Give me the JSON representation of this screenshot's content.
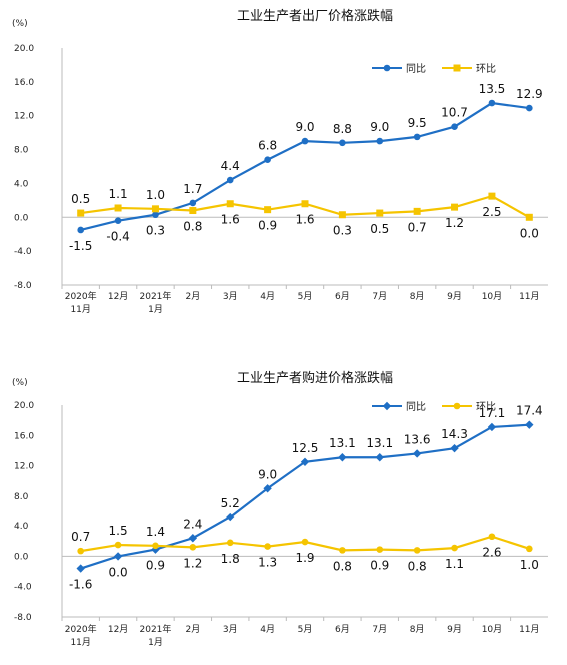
{
  "chart_data": [
    {
      "type": "line",
      "title": "工业生产者出厂价格涨跌幅",
      "unit": "(%)",
      "categories": [
        [
          "2020年",
          "11月"
        ],
        [
          "12月"
        ],
        [
          "2021年",
          "1月"
        ],
        [
          "2月"
        ],
        [
          "3月"
        ],
        [
          "4月"
        ],
        [
          "5月"
        ],
        [
          "6月"
        ],
        [
          "7月"
        ],
        [
          "8月"
        ],
        [
          "9月"
        ],
        [
          "10月"
        ],
        [
          "11月"
        ]
      ],
      "ylim": [
        -8.0,
        20.0
      ],
      "yticks": [
        "20.0",
        "16.0",
        "12.0",
        "8.0",
        "4.0",
        "0.0",
        "-4.0",
        "-8.0"
      ],
      "legend_position": "top-right",
      "series": [
        {
          "name": "同比",
          "color": "#1f6fc5",
          "marker": "circle",
          "values": [
            -1.5,
            -0.4,
            0.3,
            1.7,
            4.4,
            6.8,
            9.0,
            8.8,
            9.0,
            9.5,
            10.7,
            13.5,
            12.9
          ],
          "labels": [
            "-1.5",
            "-0.4",
            "0.3",
            "1.7",
            "4.4",
            "6.8",
            "9.0",
            "8.8",
            "9.0",
            "9.5",
            "10.7",
            "13.5",
            "12.9"
          ]
        },
        {
          "name": "环比",
          "color": "#f5c400",
          "marker": "square",
          "values": [
            0.5,
            1.1,
            1.0,
            0.8,
            1.6,
            0.9,
            1.6,
            0.3,
            0.5,
            0.7,
            1.2,
            2.5,
            0.0
          ],
          "labels": [
            "0.5",
            "1.1",
            "1.0",
            "0.8",
            "1.6",
            "0.9",
            "1.6",
            "0.3",
            "0.5",
            "0.7",
            "1.2",
            "2.5",
            "0.0"
          ]
        }
      ]
    },
    {
      "type": "line",
      "title": "工业生产者购进价格涨跌幅",
      "unit": "(%)",
      "categories": [
        [
          "2020年",
          "11月"
        ],
        [
          "12月"
        ],
        [
          "2021年",
          "1月"
        ],
        [
          "2月"
        ],
        [
          "3月"
        ],
        [
          "4月"
        ],
        [
          "5月"
        ],
        [
          "6月"
        ],
        [
          "7月"
        ],
        [
          "8月"
        ],
        [
          "9月"
        ],
        [
          "10月"
        ],
        [
          "11月"
        ]
      ],
      "ylim": [
        -8.0,
        20.0
      ],
      "yticks": [
        "20.0",
        "16.0",
        "12.0",
        "8.0",
        "4.0",
        "0.0",
        "-4.0",
        "-8.0"
      ],
      "legend_position": "top-right",
      "series": [
        {
          "name": "同比",
          "color": "#1f6fc5",
          "marker": "diamond",
          "values": [
            -1.6,
            0.0,
            0.9,
            2.4,
            5.2,
            9.0,
            12.5,
            13.1,
            13.1,
            13.6,
            14.3,
            17.1,
            17.4
          ],
          "labels": [
            "-1.6",
            "0.0",
            "0.9",
            "2.4",
            "5.2",
            "9.0",
            "12.5",
            "13.1",
            "13.1",
            "13.6",
            "14.3",
            "17.1",
            "17.4"
          ]
        },
        {
          "name": "环比",
          "color": "#f5c400",
          "marker": "circle",
          "values": [
            0.7,
            1.5,
            1.4,
            1.2,
            1.8,
            1.3,
            1.9,
            0.8,
            0.9,
            0.8,
            1.1,
            2.6,
            1.0
          ],
          "labels": [
            "0.7",
            "1.5",
            "1.4",
            "1.2",
            "1.8",
            "1.3",
            "1.9",
            "0.8",
            "0.9",
            "0.8",
            "1.1",
            "2.6",
            "1.0"
          ]
        }
      ]
    }
  ]
}
